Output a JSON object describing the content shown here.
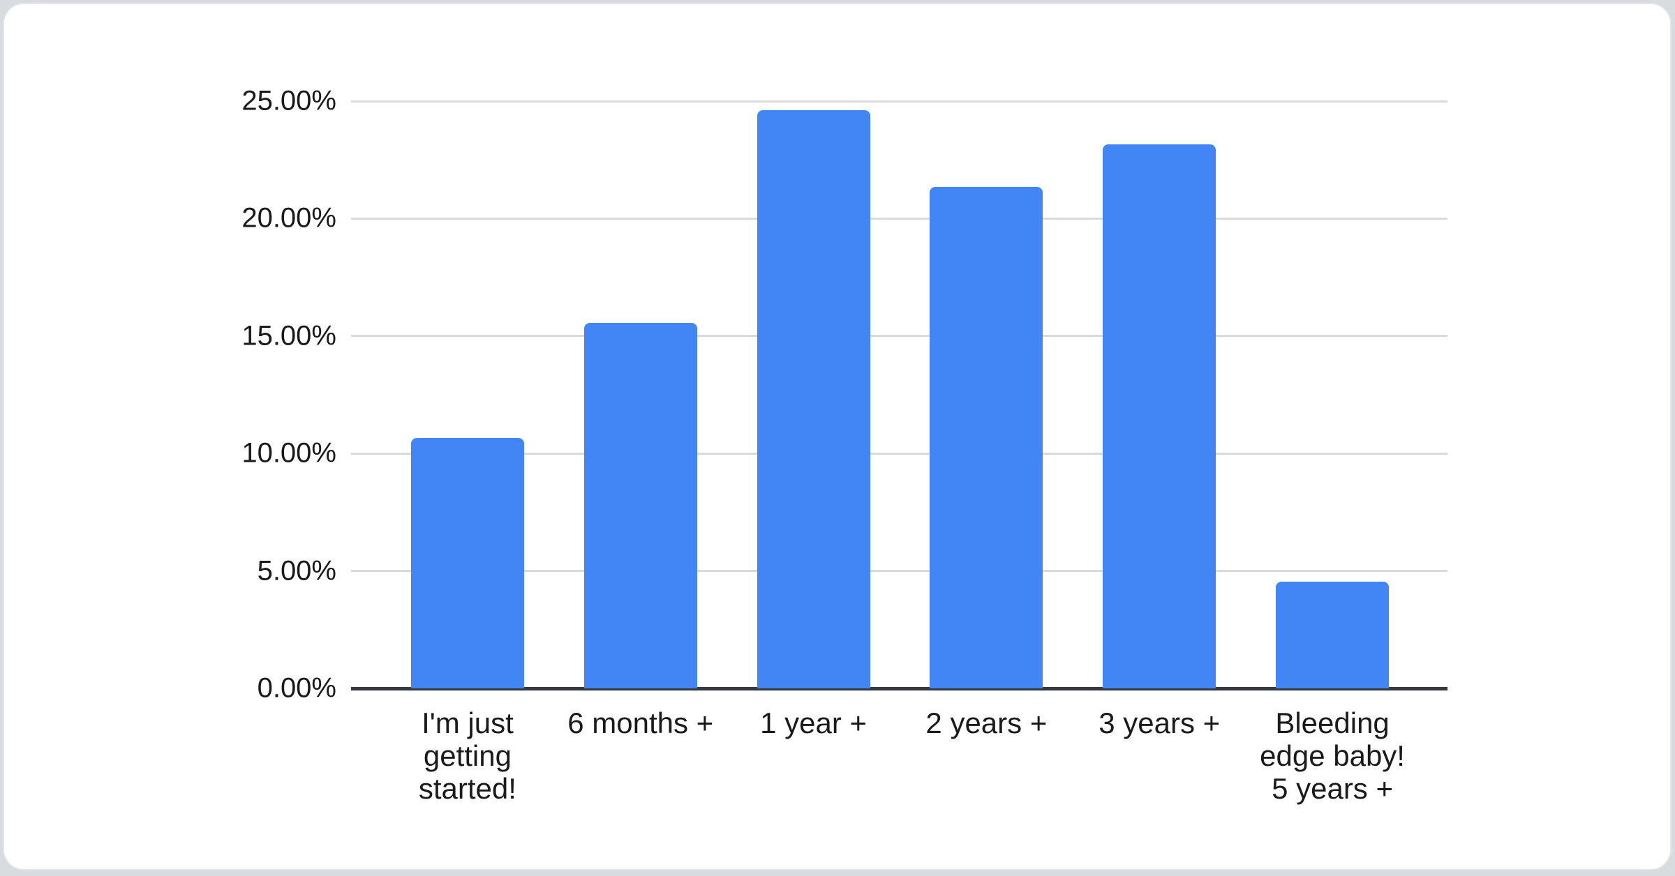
{
  "page": {
    "background_color": "#d9dcdf",
    "card_background_color": "#ffffff"
  },
  "chart_data": {
    "type": "bar",
    "title": "",
    "xlabel": "",
    "ylabel": "",
    "categories": [
      "I'm just getting started!",
      "6 months +",
      "1 year +",
      "2 years +",
      "3 years +",
      "Bleeding edge baby! 5 years +"
    ],
    "category_lines": [
      [
        "I'm just",
        "getting",
        "started!"
      ],
      [
        "6 months +"
      ],
      [
        "1 year +"
      ],
      [
        "2 years +"
      ],
      [
        "3 years +"
      ],
      [
        "Bleeding",
        "edge baby!",
        "5 years +"
      ]
    ],
    "values": [
      10.65,
      15.55,
      24.6,
      21.35,
      23.15,
      4.55
    ],
    "value_unit": "%",
    "ylim": [
      0,
      25
    ],
    "ytick_step": 5,
    "ytick_labels_top_to_bottom": [
      "25.00%",
      "20.00%",
      "15.00%",
      "10.00%",
      "5.00%",
      "0.00%"
    ],
    "grid": true,
    "legend_position": "none",
    "colors": {
      "bar": "#4285f4",
      "gridline": "#d9d9d9",
      "axis_line": "#35383c",
      "axis_text": "#1a1a1a"
    }
  }
}
